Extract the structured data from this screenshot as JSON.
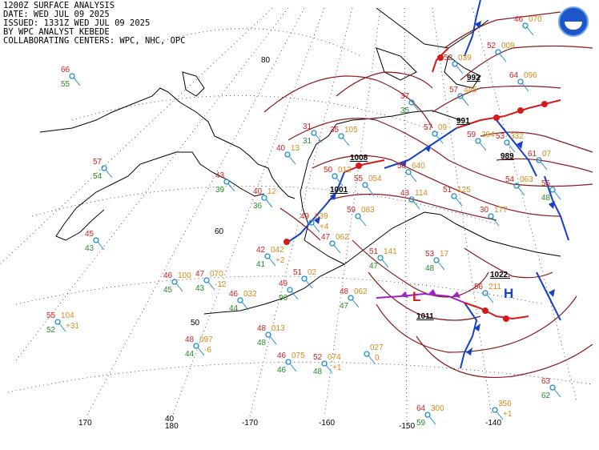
{
  "header": {
    "line1": "1200Z SURFACE ANALYSIS",
    "line2": "DATE: WED JUL 09 2025",
    "line3": "ISSUED: 1331Z WED JUL 09 2025",
    "line4": "BY WPC ANALYST KEBEDE",
    "line5": "COLLABORATING CENTERS: WPC, NHC, OPC"
  },
  "logo_icon": "noaa-logo-icon",
  "graticule_labels": {
    "lat": [
      "80",
      "60",
      "50",
      "40"
    ],
    "lon": [
      "170",
      "180",
      "-170",
      "-160",
      "-150",
      "-140"
    ]
  },
  "centers": {
    "low_main": {
      "letter": "L",
      "pressure": "1011"
    },
    "high_main": {
      "letter": "H",
      "pressure": "1022."
    },
    "low_canada_1": {
      "pressure": "992"
    },
    "low_canada_2": {
      "pressure": "991"
    },
    "low_canada_3": {
      "pressure": "989"
    },
    "low_alaska": {
      "pressure": "1001"
    },
    "low_north": {
      "pressure": "1008"
    }
  },
  "stations": [
    {
      "t": "66",
      "d": "55"
    },
    {
      "t": "57",
      "d": "54"
    },
    {
      "t": "45",
      "d": "43"
    },
    {
      "t": "46",
      "d": "45",
      "p": "100"
    },
    {
      "t": "47",
      "d": "43",
      "p": "070",
      "tend": "-12"
    },
    {
      "t": "46",
      "d": "44",
      "p": "032"
    },
    {
      "t": "55",
      "d": "52",
      "p": "104",
      "tend": "+31"
    },
    {
      "t": "48",
      "d": "44",
      "p": "097",
      "tend": "-6"
    },
    {
      "t": "48",
      "d": "48",
      "p": "013"
    },
    {
      "t": "46",
      "d": "46",
      "p": "075"
    },
    {
      "t": "52",
      "d": "48",
      "p": "074",
      "tend": "+1"
    },
    {
      "p": "027",
      "tend": "0"
    },
    {
      "t": "64",
      "d": "59",
      "p": "300"
    },
    {
      "p": "356",
      "tend": "+1"
    },
    {
      "t": "63",
      "d": "62"
    },
    {
      "t": "48",
      "d": "47",
      "p": "062"
    },
    {
      "t": "49",
      "d": "96"
    },
    {
      "t": "51",
      "p": "02"
    },
    {
      "t": "42",
      "d": "41",
      "p": "042",
      "tend": "+2"
    },
    {
      "t": "47",
      "p": "062"
    },
    {
      "t": "49",
      "p": "039",
      "tend": "+4"
    },
    {
      "t": "51",
      "d": "47",
      "p": "141"
    },
    {
      "t": "53",
      "p": "17",
      "d": "48"
    },
    {
      "t": "56",
      "p": "211"
    },
    {
      "t": "43",
      "d": "39"
    },
    {
      "t": "40",
      "d": "36",
      "p": "12"
    },
    {
      "t": "50",
      "p": "012"
    },
    {
      "t": "55",
      "p": "054"
    },
    {
      "t": "59",
      "p": "083"
    },
    {
      "t": "43",
      "p": "114"
    },
    {
      "t": "51",
      "p": "125"
    },
    {
      "t": "30",
      "p": "177"
    },
    {
      "t": "54",
      "p": "063"
    },
    {
      "t": "35",
      "p": "105"
    },
    {
      "t": "31",
      "d": "31"
    },
    {
      "t": "40",
      "p": "13"
    },
    {
      "t": "57",
      "p": "09"
    },
    {
      "t": "59",
      "p": "294"
    },
    {
      "t": "53",
      "p": "332"
    },
    {
      "t": "61",
      "p": "07"
    },
    {
      "t": "55",
      "d": "48"
    },
    {
      "t": "64",
      "p": "096"
    },
    {
      "t": "52",
      "p": "009"
    },
    {
      "t": "46",
      "p": "070"
    },
    {
      "t": "57",
      "p": "445"
    },
    {
      "t": "52",
      "p": "039"
    },
    {
      "t": "50",
      "p": "640"
    },
    {
      "t": "37",
      "d": "35"
    }
  ],
  "colors": {
    "isobar": "#8b1a1a",
    "temperature": "#d42020",
    "dewpoint": "#2a8a2a",
    "pressure_value": "#d88b1a",
    "station": "#1e8fd4",
    "cold_front": "#1540c8",
    "warm_front": "#d61a1a",
    "occluded_front": "#a020c8",
    "coast": "#000000",
    "grid": "#333333"
  }
}
